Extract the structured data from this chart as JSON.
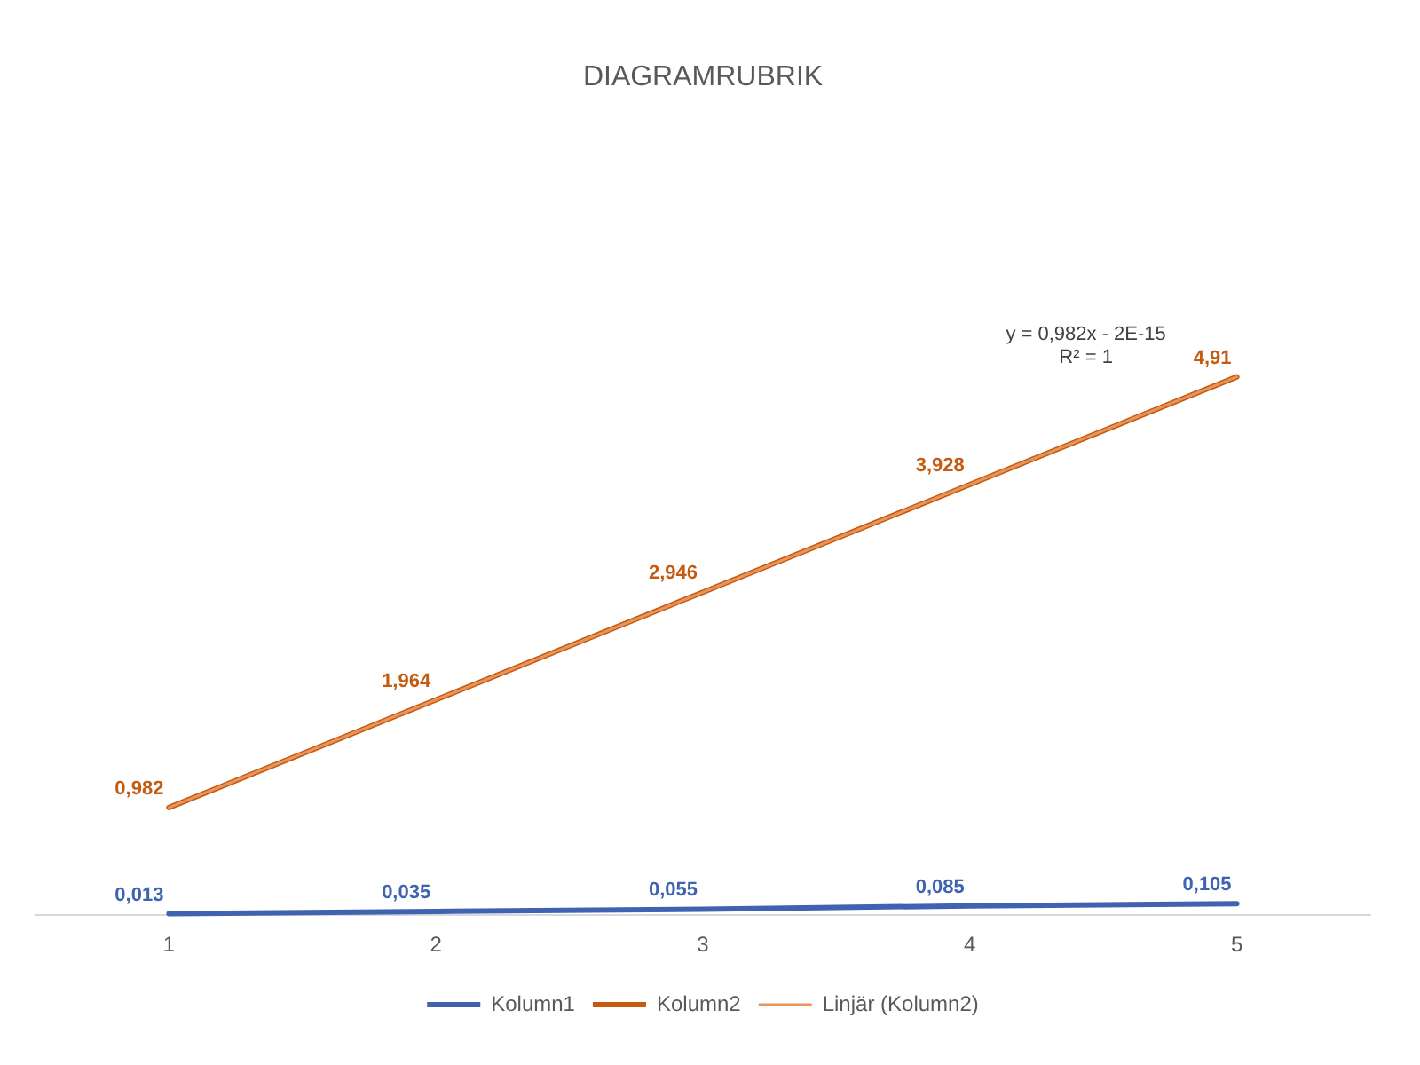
{
  "chart_data": {
    "type": "line",
    "title": "DIAGRAMRUBRIK",
    "categories": [
      "1",
      "2",
      "3",
      "4",
      "5"
    ],
    "series": [
      {
        "name": "Kolumn1",
        "color": "#3f63b0",
        "values": [
          0.013,
          0.035,
          0.055,
          0.085,
          0.105
        ],
        "value_labels": [
          "0,013",
          "0,035",
          "0,055",
          "0,085",
          "0,105"
        ]
      },
      {
        "name": "Kolumn2",
        "color": "#c55a11",
        "values": [
          0.982,
          1.964,
          2.946,
          3.928,
          4.91
        ],
        "value_labels": [
          "0,982",
          "1,964",
          "2,946",
          "3,928",
          "4,91"
        ]
      },
      {
        "name": "Linjär (Kolumn2)",
        "type": "line",
        "color": "#e8955c",
        "x": [
          "1",
          "5"
        ],
        "values": [
          0.982,
          4.91
        ]
      }
    ],
    "annotations": [
      "y = 0,982x - 2E-15",
      "R² = 1"
    ],
    "legend": "bottom",
    "tick_labels": "x",
    "marker": "none",
    "grid": false
  }
}
